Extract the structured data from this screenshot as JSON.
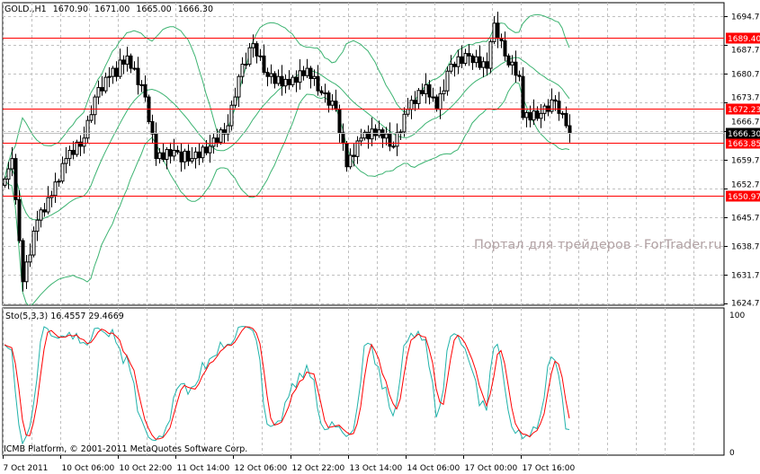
{
  "header": {
    "symbol": "GOLD.,H1",
    "open": "1670.90",
    "high": "1671.00",
    "low": "1665.00",
    "close": "1666.30"
  },
  "watermark": "Портал для трейдеров - ForTrader.ru",
  "copyright": "ICMB Platform, © 2001-2011 MetaQuotes Software Corp.",
  "indicator": {
    "label": "Sto(5,3,3)",
    "main_value": "16.4557",
    "signal_value": "29.4669",
    "axis_top": "100",
    "axis_bottom": "0",
    "main_color": "#20b2aa",
    "signal_color": "#ff0000"
  },
  "chart_data": {
    "type": "candlestick",
    "timeframe": "H1",
    "ylim": [
      1624.7,
      1694.7
    ],
    "y_ticks": [
      "1694.70",
      "1687.70",
      "1680.70",
      "1673.70",
      "1666.70",
      "1659.70",
      "1652.70",
      "1645.70",
      "1638.70",
      "1631.70",
      "1624.70"
    ],
    "x_ticks": [
      "7 Oct 2011",
      "10 Oct 06:00",
      "10 Oct 22:00",
      "11 Oct 14:00",
      "12 Oct 06:00",
      "12 Oct 22:00",
      "13 Oct 14:00",
      "14 Oct 06:00",
      "17 Oct 00:00",
      "17 Oct 16:00"
    ],
    "grid": true,
    "bollinger_color": "#3cb371",
    "bull_color": "#ffffff",
    "bear_color": "#000000",
    "current_price": "1666.30",
    "levels": [
      {
        "value": "1689.40",
        "color": "#ff0000"
      },
      {
        "value": "1672.23",
        "color": "#ff0000"
      },
      {
        "value": "1663.85",
        "color": "#ff0000"
      },
      {
        "value": "1650.97",
        "color": "#ff0000"
      }
    ],
    "closes": [
      1655,
      1657.5,
      1660,
      1650,
      1640,
      1630,
      1634.8,
      1636.5,
      1642.3,
      1645,
      1647.5,
      1647,
      1650.5,
      1651,
      1654.3,
      1654.5,
      1658.8,
      1660,
      1662,
      1661,
      1664,
      1663,
      1665,
      1669.3,
      1670.7,
      1675,
      1677.3,
      1676.5,
      1679.8,
      1680,
      1682,
      1680,
      1684,
      1683,
      1685,
      1682,
      1682,
      1678,
      1678,
      1675,
      1669,
      1666,
      1660,
      1661.4,
      1659.8,
      1662.2,
      1660.6,
      1662,
      1661.6,
      1659.2,
      1661.8,
      1659.4,
      1660,
      1661.6,
      1660.2,
      1662.8,
      1661.4,
      1663,
      1665,
      1664,
      1667,
      1666,
      1668,
      1673,
      1675,
      1680,
      1683,
      1683,
      1687,
      1688,
      1685,
      1685,
      1681,
      1680,
      1680.7,
      1678.3,
      1680,
      1677.7,
      1679.3,
      1678,
      1679.8,
      1678.6,
      1681.4,
      1680.2,
      1682,
      1679.5,
      1680,
      1676.5,
      1676,
      1676,
      1673,
      1674,
      1672,
      1666.3,
      1663.7,
      1658,
      1660.8,
      1660.5,
      1664.3,
      1665,
      1666.4,
      1664.8,
      1667.2,
      1665.6,
      1667,
      1665,
      1666,
      1663,
      1663,
      1666.3,
      1666.5,
      1670.8,
      1672,
      1674.2,
      1673.4,
      1676.6,
      1675.8,
      1678,
      1675,
      1675,
      1672,
      1675.8,
      1676.5,
      1681.3,
      1683,
      1682.4,
      1684.8,
      1683.2,
      1685.6,
      1685,
      1683.4,
      1684.8,
      1682.2,
      1683.6,
      1682,
      1688.5,
      1693,
      1689.3,
      1688.7,
      1685,
      1682.8,
      1683.5,
      1680.3,
      1680,
      1670,
      1671.2,
      1669.4,
      1671.6,
      1669.8,
      1671,
      1672.8,
      1671.5,
      1674.3,
      1674,
      1671,
      1671,
      1668,
      1666.3
    ]
  }
}
